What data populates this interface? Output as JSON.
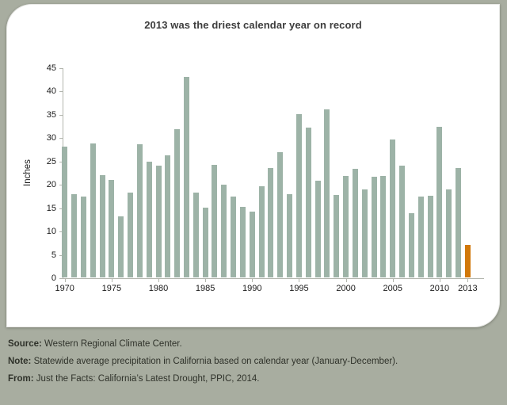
{
  "chart_data": {
    "type": "bar",
    "title": "2013 was the driest calendar year on record",
    "ylabel": "Inches",
    "xlabel": "",
    "ylim": [
      0,
      45
    ],
    "ytick_step": 5,
    "xtick_labels": [
      1970,
      1975,
      1980,
      1985,
      1990,
      1995,
      2000,
      2005,
      2010,
      2013
    ],
    "categories": [
      1970,
      1971,
      1972,
      1973,
      1974,
      1975,
      1976,
      1977,
      1978,
      1979,
      1980,
      1981,
      1982,
      1983,
      1984,
      1985,
      1986,
      1987,
      1988,
      1989,
      1990,
      1991,
      1992,
      1993,
      1994,
      1995,
      1996,
      1997,
      1998,
      1999,
      2000,
      2001,
      2002,
      2003,
      2004,
      2005,
      2006,
      2007,
      2008,
      2009,
      2010,
      2011,
      2012,
      2013
    ],
    "values": [
      28.0,
      17.9,
      17.4,
      28.7,
      21.9,
      20.9,
      13.0,
      18.1,
      28.5,
      24.8,
      24.0,
      26.2,
      31.7,
      43.0,
      18.2,
      15.0,
      24.2,
      19.8,
      17.3,
      15.2,
      14.1,
      19.6,
      23.5,
      26.9,
      17.8,
      35.0,
      32.1,
      20.8,
      36.0,
      17.7,
      21.7,
      23.3,
      18.9,
      21.6,
      21.8,
      29.5,
      24.0,
      13.8,
      17.3,
      17.5,
      32.2,
      18.8,
      23.5,
      7.0
    ],
    "highlight_category": 2013,
    "grid": false,
    "legend": "none",
    "colors": {
      "bar": "#9DB3A7",
      "highlight": "#D1780A",
      "axis": "#B3B6AE",
      "tick_label": "#1A1A1A"
    }
  },
  "footer": {
    "source_label": "Source:",
    "source_text": "Western Regional Climate Center.",
    "note_label": "Note:",
    "note_text": "Statewide average precipitation in California based on calendar year (January-December).",
    "from_label": "From:",
    "from_text": "Just the Facts: California’s Latest Drought, PPIC, 2014."
  },
  "colors": {
    "page_background": "#A8ADA0",
    "card_background": "#FFFFFF",
    "title_text": "#3D3D3D",
    "footer_text": "#2F322A"
  }
}
